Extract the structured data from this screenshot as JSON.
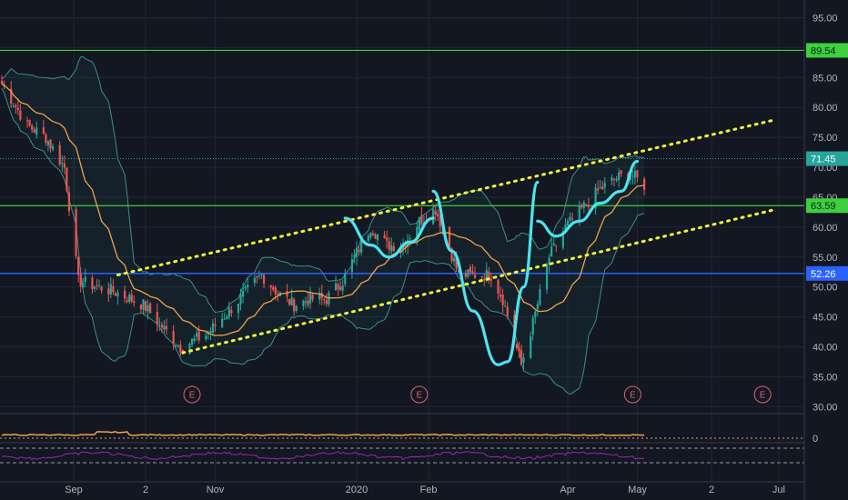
{
  "colors": {
    "background": "#131722",
    "grid": "#232733",
    "up": "#26a69a",
    "down": "#ef5350",
    "ma": "#f0a04b",
    "band": "#3a8f8a",
    "channel": "#f2f23a",
    "pattern": "#4de3ee",
    "resistance": "#3cd13c",
    "support": "#2962ff",
    "rsi": "#9c27b0"
  },
  "earnings_marker": "E",
  "chart_data": {
    "type": "candlestick",
    "y_ticks": [
      "95.00",
      "90.00",
      "85.00",
      "80.00",
      "75.00",
      "70.00",
      "65.00",
      "60.00",
      "55.00",
      "50.00",
      "45.00",
      "40.00",
      "35.00",
      "30.00"
    ],
    "ylim": [
      29.5,
      96.5
    ],
    "x_ticks": [
      "Sep",
      "2",
      "Nov",
      "2020",
      "Feb",
      "Apr",
      "May",
      "2",
      "Jul"
    ],
    "price_levels": [
      {
        "value": "89.54",
        "kind": "resistance"
      },
      {
        "value": "71.45",
        "kind": "last"
      },
      {
        "value": "63.59",
        "kind": "resistance"
      },
      {
        "value": "52.26",
        "kind": "support"
      }
    ],
    "earnings_dates": [
      "2019-10-22",
      "2020-01-28",
      "2020-04-29"
    ],
    "channel": {
      "upper": [
        [
          "2019-09-20",
          52
        ],
        [
          "2020-06-30",
          78
        ]
      ],
      "lower": [
        [
          "2019-10-18",
          39
        ],
        [
          "2020-06-30",
          63
        ]
      ]
    },
    "pattern": [
      {
        "name": "cup-1",
        "points": [
          [
            "2019-12-27",
            61.5
          ],
          [
            "2020-01-07",
            57
          ],
          [
            "2020-01-15",
            55
          ],
          [
            "2020-01-24",
            57.5
          ],
          [
            "2020-02-03",
            61.5
          ]
        ]
      },
      {
        "name": "cup-2",
        "points": [
          [
            "2020-02-03",
            66
          ],
          [
            "2020-02-11",
            56
          ],
          [
            "2020-02-20",
            46
          ],
          [
            "2020-03-02",
            37
          ],
          [
            "2020-03-06",
            37.5
          ],
          [
            "2020-03-13",
            50
          ],
          [
            "2020-03-19",
            67.5
          ]
        ]
      },
      {
        "name": "cup-3",
        "points": [
          [
            "2020-03-19",
            61
          ],
          [
            "2020-03-27",
            58.5
          ],
          [
            "2020-04-06",
            61
          ],
          [
            "2020-04-15",
            64
          ],
          [
            "2020-04-24",
            66
          ],
          [
            "2020-05-01",
            71
          ]
        ]
      }
    ],
    "price_anchors": [
      [
        "2019-08-01",
        84
      ],
      [
        "2019-08-12",
        77
      ],
      [
        "2019-08-20",
        75
      ],
      [
        "2019-08-28",
        70
      ],
      [
        "2019-09-03",
        51
      ],
      [
        "2019-09-12",
        50
      ],
      [
        "2019-09-20",
        49
      ],
      [
        "2019-10-01",
        47
      ],
      [
        "2019-10-10",
        43
      ],
      [
        "2019-10-17",
        40
      ],
      [
        "2019-10-28",
        42
      ],
      [
        "2019-11-07",
        46
      ],
      [
        "2019-11-14",
        49
      ],
      [
        "2019-11-21",
        52
      ],
      [
        "2019-11-28",
        49
      ],
      [
        "2019-12-05",
        47
      ],
      [
        "2019-12-12",
        48
      ],
      [
        "2019-12-19",
        48
      ],
      [
        "2019-12-26",
        51
      ],
      [
        "2019-12-31",
        55
      ],
      [
        "2020-01-07",
        60
      ],
      [
        "2020-01-14",
        57
      ],
      [
        "2020-01-21",
        57
      ],
      [
        "2020-01-28",
        61
      ],
      [
        "2020-02-04",
        63
      ],
      [
        "2020-02-07",
        60
      ],
      [
        "2020-02-14",
        52
      ],
      [
        "2020-02-21",
        52
      ],
      [
        "2020-02-28",
        52
      ],
      [
        "2020-03-04",
        48
      ],
      [
        "2020-03-09",
        41
      ],
      [
        "2020-03-12",
        37
      ],
      [
        "2020-03-17",
        44
      ],
      [
        "2020-03-24",
        55
      ],
      [
        "2020-03-31",
        60
      ],
      [
        "2020-04-07",
        63
      ],
      [
        "2020-04-14",
        66
      ],
      [
        "2020-04-21",
        68
      ],
      [
        "2020-04-28",
        69
      ],
      [
        "2020-05-04",
        67
      ]
    ]
  }
}
